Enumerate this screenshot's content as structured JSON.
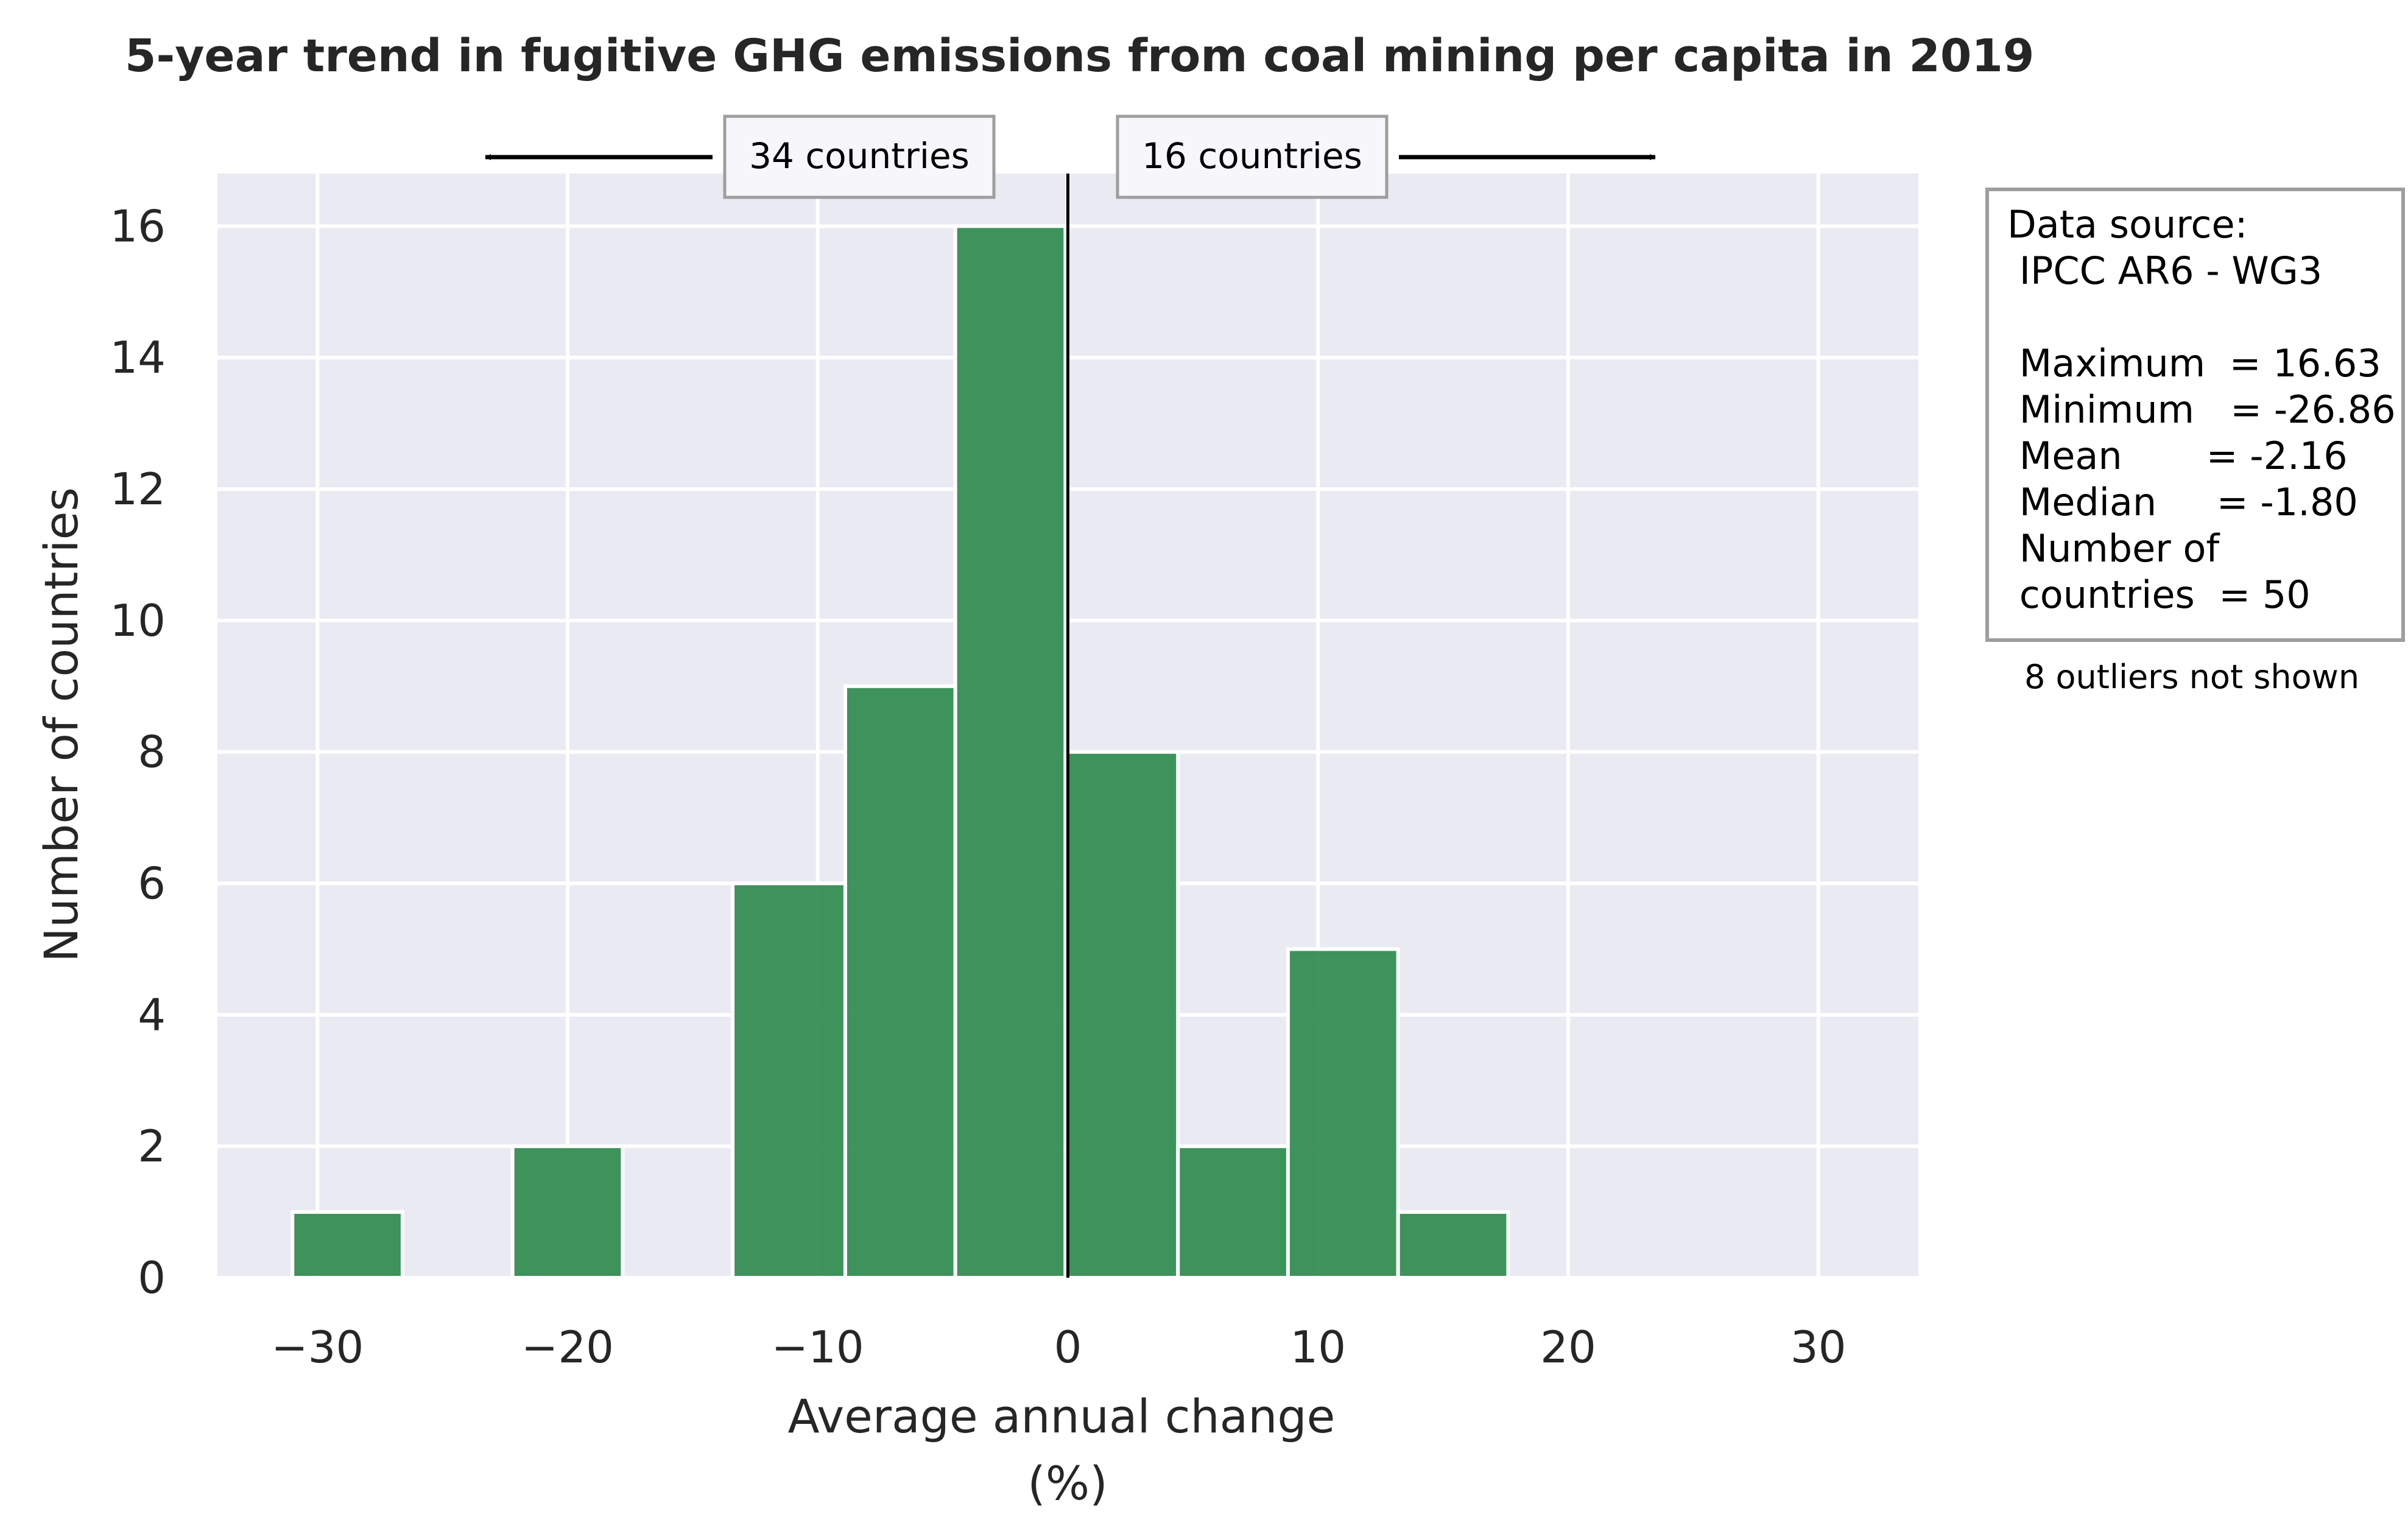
{
  "chart_data": {
    "type": "bar",
    "title": "5-year trend in fugitive GHG emissions from coal mining per capita in 2019",
    "xlabel": "Average annual change",
    "xlabel_unit": "(%)",
    "ylabel": "Number of countries",
    "xlim": [
      -34,
      34
    ],
    "ylim": [
      0,
      16.8
    ],
    "xticks": [
      -30,
      -20,
      -10,
      0,
      10,
      20,
      30
    ],
    "xtick_labels": [
      "−30",
      "−20",
      "−10",
      "0",
      "10",
      "20",
      "30"
    ],
    "yticks": [
      0,
      2,
      4,
      6,
      8,
      10,
      12,
      14,
      16
    ],
    "ytick_labels": [
      "0",
      "2",
      "4",
      "6",
      "8",
      "10",
      "12",
      "14",
      "16"
    ],
    "grid": true,
    "bins": [
      {
        "start": -31.0,
        "end": -26.6,
        "count": 1
      },
      {
        "start": -26.6,
        "end": -22.2,
        "count": 0
      },
      {
        "start": -22.2,
        "end": -17.8,
        "count": 2
      },
      {
        "start": -17.8,
        "end": -13.4,
        "count": 0
      },
      {
        "start": -13.4,
        "end": -8.9,
        "count": 6
      },
      {
        "start": -8.9,
        "end": -4.5,
        "count": 9
      },
      {
        "start": -4.5,
        "end": -0.1,
        "count": 16
      },
      {
        "start": -0.1,
        "end": 4.4,
        "count": 8
      },
      {
        "start": 4.4,
        "end": 8.8,
        "count": 2
      },
      {
        "start": 8.8,
        "end": 13.2,
        "count": 5
      },
      {
        "start": 13.2,
        "end": 17.6,
        "count": 1
      }
    ],
    "vertical_line_x": 0,
    "annotations": {
      "left_label": "34 countries",
      "right_label": "16 countries"
    },
    "colors": {
      "bar": "#2e8b4e",
      "plot_background": "#eaeaf2",
      "grid": "#ffffff",
      "zero_line": "#000000"
    }
  },
  "info_box": {
    "lines": [
      "Data source:",
      " IPCC AR6 - WG3",
      "",
      " Maximum  = 16.63",
      " Minimum   = -26.86",
      " Mean       = -2.16",
      " Median     = -1.80",
      " Number of",
      " countries  = 50"
    ],
    "footnote": "8 outliers not shown"
  }
}
